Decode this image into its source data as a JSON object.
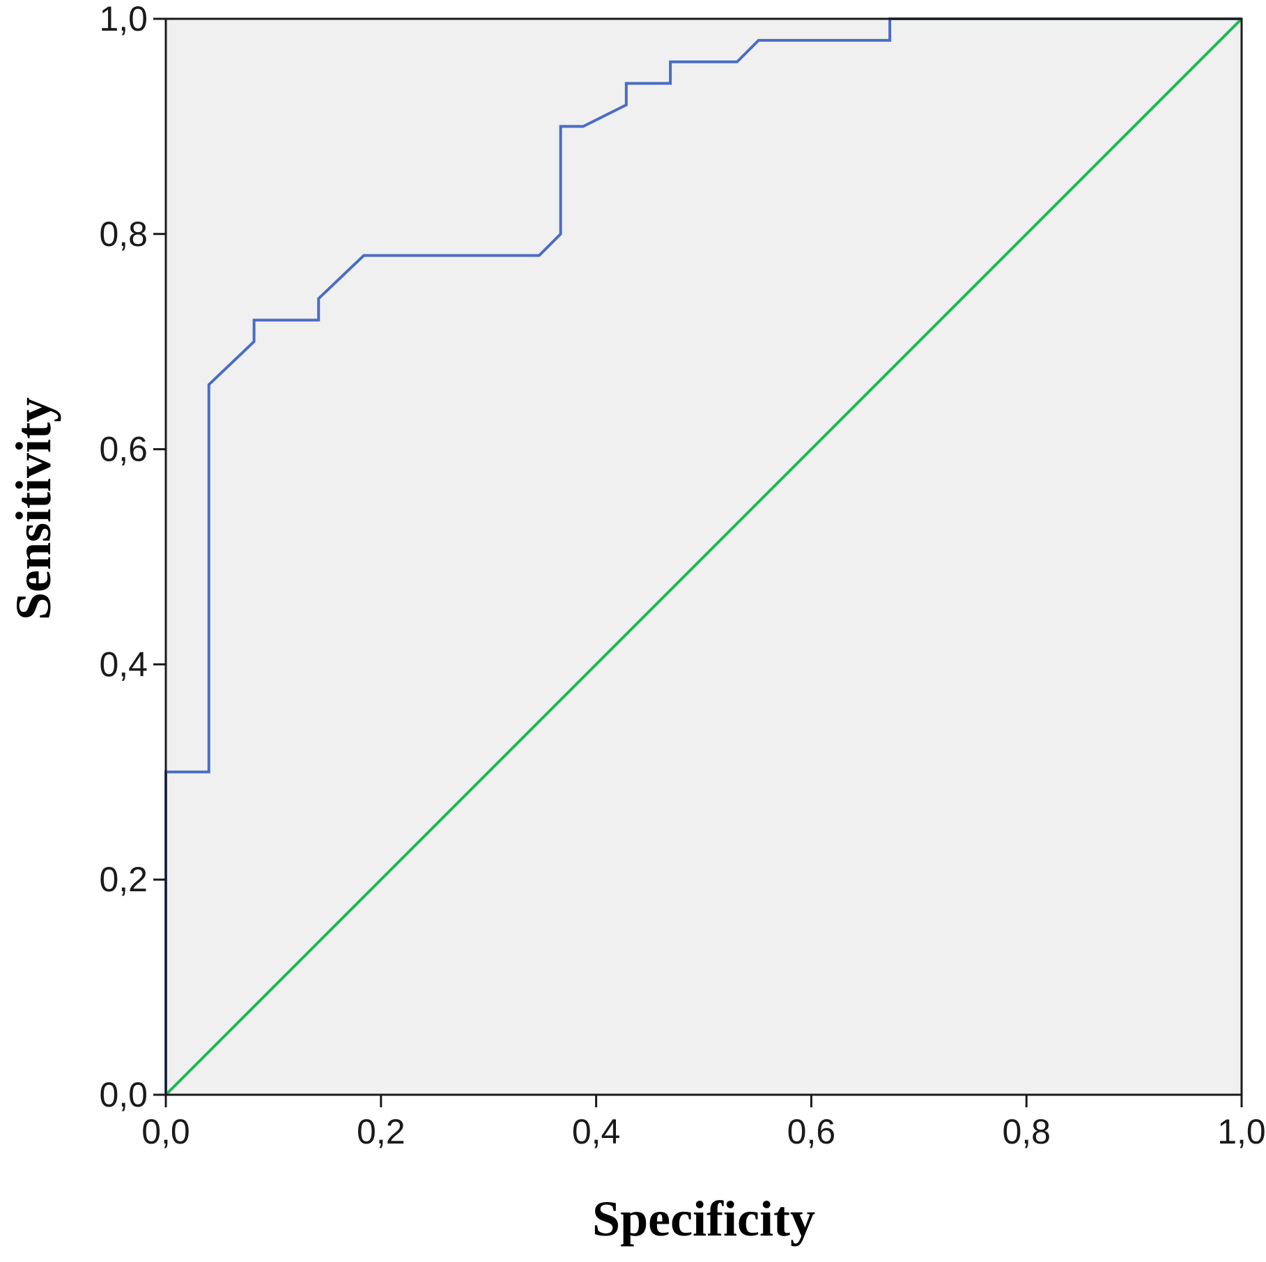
{
  "chart_data": {
    "type": "line",
    "title": "",
    "xlabel": "Specificity",
    "ylabel": "Sensitivity",
    "xlim": [
      0,
      1
    ],
    "ylim": [
      0,
      1
    ],
    "x_ticks": [
      "0,0",
      "0,2",
      "0,4",
      "0,6",
      "0,8",
      "1,0"
    ],
    "y_ticks": [
      "0,0",
      "0,2",
      "0,4",
      "0,6",
      "0,8",
      "1,0"
    ],
    "grid": false,
    "legend": "none",
    "plot_background": "#f0f0f0",
    "series": [
      {
        "color": "#4a6cc4",
        "line_style": "step",
        "points": [
          [
            0.0,
            0.0
          ],
          [
            0.0,
            0.3
          ],
          [
            0.04,
            0.3
          ],
          [
            0.04,
            0.66
          ],
          [
            0.082,
            0.7
          ],
          [
            0.082,
            0.72
          ],
          [
            0.142,
            0.72
          ],
          [
            0.142,
            0.74
          ],
          [
            0.184,
            0.78
          ],
          [
            0.347,
            0.78
          ],
          [
            0.367,
            0.8
          ],
          [
            0.367,
            0.9
          ],
          [
            0.388,
            0.9
          ],
          [
            0.428,
            0.92
          ],
          [
            0.428,
            0.94
          ],
          [
            0.469,
            0.94
          ],
          [
            0.469,
            0.96
          ],
          [
            0.531,
            0.96
          ],
          [
            0.551,
            0.98
          ],
          [
            0.673,
            0.98
          ],
          [
            0.673,
            1.0
          ],
          [
            1.0,
            1.0
          ]
        ]
      },
      {
        "color": "#1db954",
        "line_style": "reference",
        "points": [
          [
            0.0,
            0.0
          ],
          [
            1.0,
            1.0
          ]
        ]
      }
    ]
  }
}
